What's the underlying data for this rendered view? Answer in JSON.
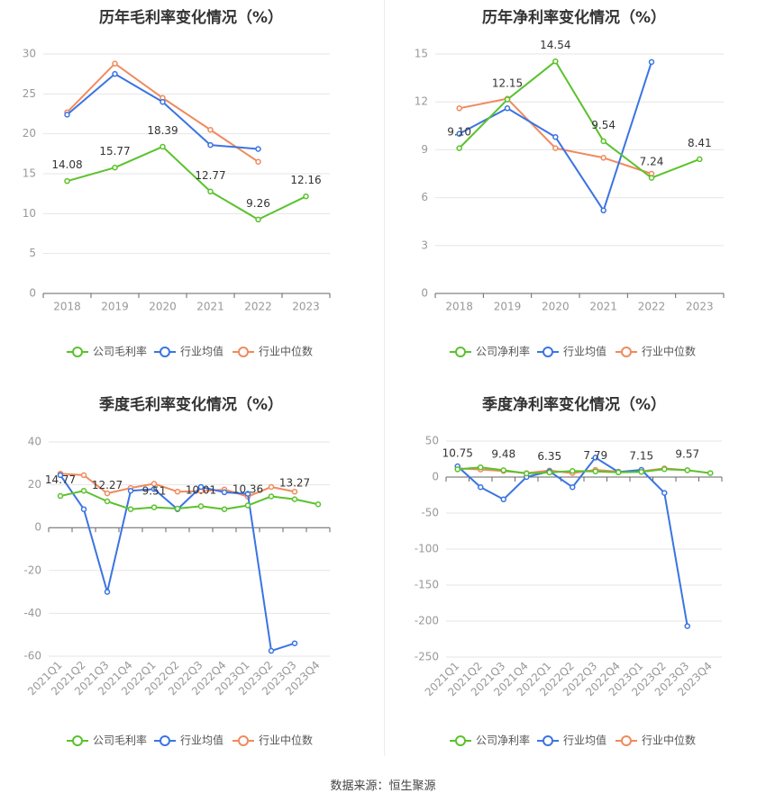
{
  "colors": {
    "company": "#5ac22c",
    "industry_avg": "#3a74e3",
    "industry_median": "#f08a5d",
    "grid": "#e6e6e6",
    "axis_text": "#999999",
    "title_text": "#333333",
    "label_text": "#333333"
  },
  "source_text": "数据来源：恒生聚源",
  "chart_data": [
    {
      "type": "line",
      "title": "历年毛利率变化情况（%）",
      "categories": [
        "2018",
        "2019",
        "2020",
        "2021",
        "2022",
        "2023"
      ],
      "ylim": [
        0,
        30
      ],
      "yticks": [
        0,
        5,
        10,
        15,
        20,
        25,
        30
      ],
      "grid": true,
      "legend_position": "bottom",
      "series": [
        {
          "name": "公司毛利率",
          "values": [
            14.08,
            15.77,
            18.39,
            12.77,
            9.26,
            12.16
          ],
          "labels": [
            "14.08",
            "15.77",
            "18.39",
            "12.77",
            "9.26",
            "12.16"
          ]
        },
        {
          "name": "行业均值",
          "values": [
            22.4,
            27.5,
            24.0,
            18.6,
            18.1,
            null
          ]
        },
        {
          "name": "行业中位数",
          "values": [
            22.7,
            28.8,
            24.5,
            20.5,
            16.5,
            null
          ]
        }
      ]
    },
    {
      "type": "line",
      "title": "历年净利率变化情况（%）",
      "categories": [
        "2018",
        "2019",
        "2020",
        "2021",
        "2022",
        "2023"
      ],
      "ylim": [
        0,
        15
      ],
      "yticks": [
        0,
        3,
        6,
        9,
        12,
        15
      ],
      "grid": true,
      "legend_position": "bottom",
      "series": [
        {
          "name": "公司净利率",
          "values": [
            9.1,
            12.15,
            14.54,
            9.54,
            7.24,
            8.41
          ],
          "labels": [
            "9.10",
            "12.15",
            "14.54",
            "9.54",
            "7.24",
            "8.41"
          ]
        },
        {
          "name": "行业均值",
          "values": [
            10.0,
            11.6,
            9.8,
            5.2,
            14.5,
            null
          ]
        },
        {
          "name": "行业中位数",
          "values": [
            11.6,
            12.2,
            9.1,
            8.5,
            7.5,
            null
          ]
        }
      ]
    },
    {
      "type": "line",
      "title": "季度毛利率变化情况（%）",
      "categories": [
        "2021Q1",
        "2021Q2",
        "2021Q3",
        "2021Q4",
        "2022Q1",
        "2022Q2",
        "2022Q3",
        "2022Q4",
        "2023Q1",
        "2023Q2",
        "2023Q3",
        "2023Q4"
      ],
      "ylim": [
        -60,
        40
      ],
      "yticks": [
        -60,
        -40,
        -20,
        0,
        20,
        40
      ],
      "grid": true,
      "legend_position": "bottom",
      "series": [
        {
          "name": "公司毛利率",
          "values": [
            14.77,
            17.2,
            12.27,
            8.6,
            9.51,
            8.9,
            10.01,
            8.6,
            10.36,
            14.6,
            13.27,
            10.9
          ],
          "labels": [
            "14.77",
            null,
            "12.27",
            null,
            "9.51",
            null,
            "10.01",
            null,
            "10.36",
            null,
            "13.27",
            null
          ]
        },
        {
          "name": "行业均值",
          "values": [
            24.5,
            8.6,
            -30.0,
            17.2,
            18.0,
            8.6,
            19.0,
            16.5,
            15.8,
            -57.5,
            -54.0,
            null
          ]
        },
        {
          "name": "行业中位数",
          "values": [
            25.2,
            24.5,
            16.0,
            18.5,
            20.5,
            16.8,
            17.0,
            17.8,
            14.5,
            19.0,
            16.8,
            null
          ]
        }
      ]
    },
    {
      "type": "line",
      "title": "季度净利率变化情况（%）",
      "categories": [
        "2021Q1",
        "2021Q2",
        "2021Q3",
        "2021Q4",
        "2022Q1",
        "2022Q2",
        "2022Q3",
        "2022Q4",
        "2023Q1",
        "2023Q2",
        "2023Q3",
        "2023Q4"
      ],
      "ylim": [
        -250,
        50
      ],
      "yticks": [
        -250,
        -200,
        -150,
        -100,
        -50,
        0,
        50
      ],
      "grid": true,
      "legend_position": "bottom",
      "series": [
        {
          "name": "公司净利率",
          "values": [
            10.75,
            13.5,
            9.48,
            5.0,
            6.35,
            8.5,
            7.79,
            6.5,
            7.15,
            11.0,
            9.57,
            5.5
          ],
          "labels": [
            "10.75",
            null,
            "9.48",
            null,
            "6.35",
            null,
            "7.79",
            null,
            "7.15",
            null,
            "9.57",
            null
          ]
        },
        {
          "name": "行业均值",
          "values": [
            15.0,
            -14.0,
            -31.0,
            0.0,
            8.0,
            -14.0,
            27.0,
            7.0,
            10.0,
            -22.0,
            -207.0,
            null
          ]
        },
        {
          "name": "行业中位数",
          "values": [
            12.0,
            10.5,
            8.5,
            5.5,
            9.0,
            5.5,
            10.0,
            7.5,
            8.0,
            12.0,
            9.5,
            null
          ]
        }
      ]
    }
  ]
}
